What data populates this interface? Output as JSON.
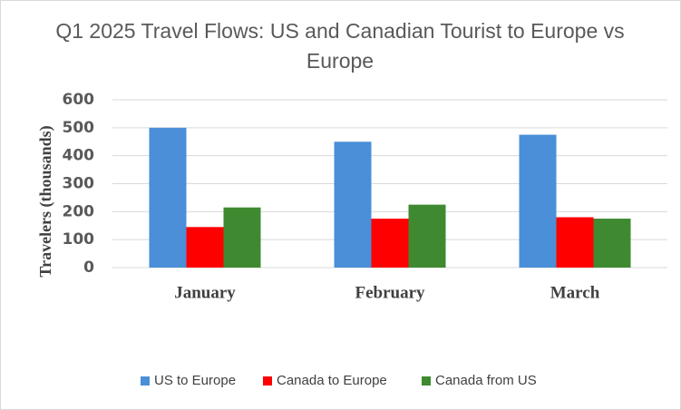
{
  "chart_data": {
    "type": "bar",
    "title": "Q1 2025 Travel Flows: US and Canadian Tourist to Europe vs Europe",
    "y_label": "Travelers  (thousands)",
    "categories": [
      "January",
      "February",
      "March"
    ],
    "series": [
      {
        "name": "US to Europe",
        "color": "#4a8fd8",
        "values": [
          500,
          450,
          475
        ]
      },
      {
        "name": "Canada to Europe",
        "color": "#ff0000",
        "values": [
          145,
          175,
          180
        ]
      },
      {
        "name": "Canada from US",
        "color": "#3f8a30",
        "values": [
          215,
          225,
          175
        ]
      }
    ],
    "ylim": [
      0,
      600
    ],
    "yticks": [
      0,
      100,
      200,
      300,
      400,
      500,
      600
    ],
    "grid": true,
    "legend": "bottom"
  }
}
